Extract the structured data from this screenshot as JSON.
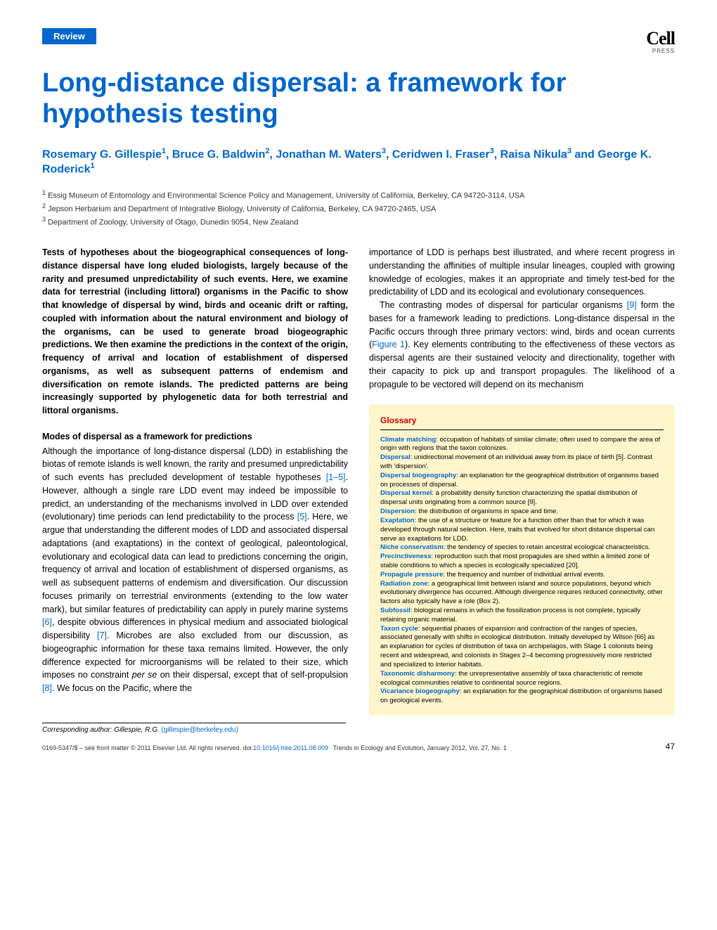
{
  "header": {
    "badge": "Review",
    "logo_text": "Cell",
    "logo_sub": "PRESS"
  },
  "title": "Long-distance dispersal: a framework for hypothesis testing",
  "authors_html": "Rosemary G. Gillespie<sup>1</sup>, Bruce G. Baldwin<sup>2</sup>, Jonathan M. Waters<sup>3</sup>, Ceridwen I. Fraser<sup>3</sup>, Raisa Nikula<sup>3</sup> and George K. Roderick<sup>1</sup>",
  "affiliations": [
    "<sup>1</sup> Essig Museum of Entomology and Environmental Science Policy and Management, University of California, Berkeley, CA 94720-3114, USA",
    "<sup>2</sup> Jepson Herbarium and Department of Integrative Biology, University of California, Berkeley, CA 94720-2465, USA",
    "<sup>3</sup> Department of Zoology, University of Otago, Dunedin 9054, New Zealand"
  ],
  "abstract": "Tests of hypotheses about the biogeographical consequences of long-distance dispersal have long eluded biologists, largely because of the rarity and presumed unpredictability of such events. Here, we examine data for terrestrial (including littoral) organisms in the Pacific to show that knowledge of dispersal by wind, birds and oceanic drift or rafting, coupled with information about the natural environment and biology of the organisms, can be used to generate broad biogeographic predictions. We then examine the predictions in the context of the origin, frequency of arrival and location of establishment of dispersed organisms, as well as subsequent patterns of endemism and diversification on remote islands. The predicted patterns are being increasingly supported by phylogenetic data for both terrestrial and littoral organisms.",
  "section1": {
    "heading": "Modes of dispersal as a framework for predictions",
    "text": "Although the importance of long-distance dispersal (LDD) in establishing the biotas of remote islands is well known, the rarity and presumed unpredictability of such events has precluded development of testable hypotheses <span class='ref-link'>[1–5]</span>. However, although a single rare LDD event may indeed be impossible to predict, an understanding of the mechanisms involved in LDD over extended (evolutionary) time periods can lend predictability to the process <span class='ref-link'>[5]</span>. Here, we argue that understanding the different modes of LDD and associated dispersal adaptations (and exaptations) in the context of geological, paleontological, evolutionary and ecological data can lead to predictions concerning the origin, frequency of arrival and location of establishment of dispersed organisms, as well as subsequent patterns of endemism and diversification. Our discussion focuses primarily on terrestrial environments (extending to the low water mark), but similar features of predictability can apply in purely marine systems <span class='ref-link'>[6]</span>, despite obvious differences in physical medium and associated biological dispersibility <span class='ref-link'>[7]</span>. Microbes are also excluded from our discussion, as biogeographic information for these taxa remains limited. However, the only difference expected for microorganisms will be related to their size, which imposes no constraint <i>per se</i> on their dispersal, except that of self-propulsion <span class='ref-link'>[8]</span>. We focus on the Pacific, where the"
  },
  "col2_text1": "importance of LDD is perhaps best illustrated, and where recent progress in understanding the affinities of multiple insular lineages, coupled with growing knowledge of ecologies, makes it an appropriate and timely test-bed for the predictability of LDD and its ecological and evolutionary consequences.",
  "col2_text2": "The contrasting modes of dispersal for particular organisms <span class='ref-link'>[9]</span> form the bases for a framework leading to predictions. Long-distance dispersal in the Pacific occurs through three primary vectors: wind, birds and ocean currents (<span class='ref-link'>Figure 1</span>). Key elements contributing to the effectiveness of these vectors as dispersal agents are their sustained velocity and directionality, together with their capacity to pick up and transport propagules. The likelihood of a propagule to be vectored will depend on its mechanism",
  "glossary": {
    "title": "Glossary",
    "items": [
      {
        "term": "Climate matching",
        "def": ": occupation of habitats of similar climate; often used to compare the area of origin with regions that the taxon colonizes."
      },
      {
        "term": "Dispersal",
        "def": ": unidirectional movement of an individual away from its place of birth [5]. Contrast with 'dispersion'."
      },
      {
        "term": "Dispersal biogeography",
        "def": ": an explanation for the geographical distribution of organisms based on processes of dispersal."
      },
      {
        "term": "Dispersal kernel",
        "def": ": a probability density function characterizing the spatial distribution of dispersal units originating from a common source [9]."
      },
      {
        "term": "Dispersion",
        "def": ": the distribution of organisms in space and time."
      },
      {
        "term": "Exaptation",
        "def": ": the use of a structure or feature for a function other than that for which it was developed through natural selection. Here, traits that evolved for short distance dispersal can serve as exaptations for LDD."
      },
      {
        "term": "Niche conservatism",
        "def": ": the tendency of species to retain ancestral ecological characteristics."
      },
      {
        "term": "Precinctiveness",
        "def": ": reproduction such that most propagules are shed within a limited zone of stable conditions to which a species is ecologically specialized [20]."
      },
      {
        "term": "Propagule pressure",
        "def": ": the frequency and number of individual arrival events."
      },
      {
        "term": "Radiation zone",
        "def": ": a geographical limit between island and source populations, beyond which evolutionary divergence has occurred. Although divergence requires reduced connectivity, other factors also typically have a role (Box 2)."
      },
      {
        "term": "Subfossil",
        "def": ": biological remains in which the fossilization process is not complete, typically retaining organic material."
      },
      {
        "term": "Taxon cycle",
        "def": ": sequential phases of expansion and contraction of the ranges of species, associated generally with shifts in ecological distribution. Initially developed by Wilson [66] as an explanation for cycles of distribution of taxa on archipelagos, with Stage 1 colonists being recent and widespread, and colonists in Stages 2–4 becoming progressively more restricted and specialized to interior habitats."
      },
      {
        "term": "Taxonomic disharmony",
        "def": ": the unrepresentative assembly of taxa characteristic of remote ecological communities relative to continental source regions."
      },
      {
        "term": "Vicariance biogeography",
        "def": ": an explanation for the geographical distribution of organisms based on geological events."
      }
    ]
  },
  "corresponding": {
    "label": "Corresponding author:",
    "name": "Gillespie, R.G.",
    "email": "(gillespie@berkeley.edu)"
  },
  "footer": {
    "left": "0169-5347/$ – see front matter © 2011 Elsevier Ltd. All rights reserved. doi:",
    "doi": "10.1016/j.tree.2011.08.009",
    "right": "Trends in Ecology and Evolution, January 2012, Vol. 27, No. 1",
    "page": "47"
  },
  "colors": {
    "blue": "#0066cc",
    "glossary_bg": "#fff5cc",
    "glossary_title": "#c00"
  }
}
